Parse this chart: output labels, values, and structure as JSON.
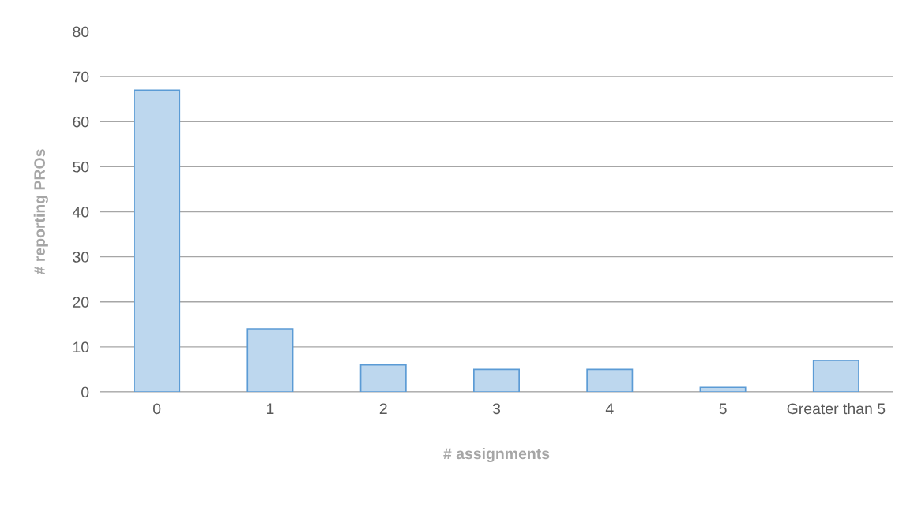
{
  "chart_data": {
    "type": "bar",
    "xlabel": "# assignments",
    "ylabel": "# reporting PROs",
    "categories": [
      "0",
      "1",
      "2",
      "3",
      "4",
      "5",
      "Greater than 5"
    ],
    "values": [
      67,
      14,
      6,
      5,
      5,
      1,
      7
    ],
    "color": "#bdd7ee",
    "ylim": [
      0,
      80
    ],
    "yticks": [
      0,
      10,
      20,
      30,
      40,
      50,
      60,
      70,
      80
    ],
    "grid": "y",
    "legend": false
  }
}
